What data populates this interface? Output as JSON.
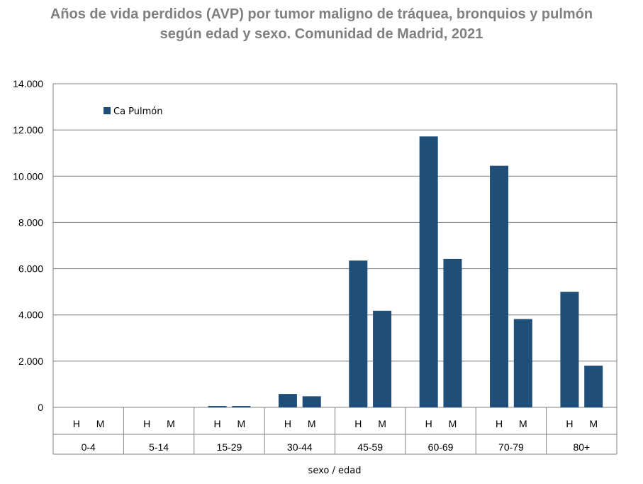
{
  "chart_data": {
    "type": "bar",
    "title": "Años de vida perdidos (AVP) por tumor maligno de tráquea, bronquios y pulmón",
    "subtitle": "según edad y sexo. Comunidad de Madrid, 2021",
    "xlabel": "sexo / edad",
    "ylabel": "",
    "ylim": [
      0,
      14000
    ],
    "y_ticks": [
      "0",
      "2.000",
      "4.000",
      "6.000",
      "8.000",
      "10.000",
      "12.000",
      "14.000"
    ],
    "grid": true,
    "legend_position": "top-left",
    "groups": [
      "0-4",
      "5-14",
      "15-29",
      "30-44",
      "45-59",
      "60-69",
      "70-79",
      "80+"
    ],
    "sexes": [
      "H",
      "M"
    ],
    "series": [
      {
        "name": "Ca Pulmón",
        "color": "#1f4e79",
        "values": [
          [
            0,
            0
          ],
          [
            0,
            0
          ],
          [
            60,
            60
          ],
          [
            580,
            480
          ],
          [
            6350,
            4180
          ],
          [
            11720,
            6420
          ],
          [
            10450,
            3820
          ],
          [
            5000,
            1800
          ]
        ]
      }
    ]
  }
}
